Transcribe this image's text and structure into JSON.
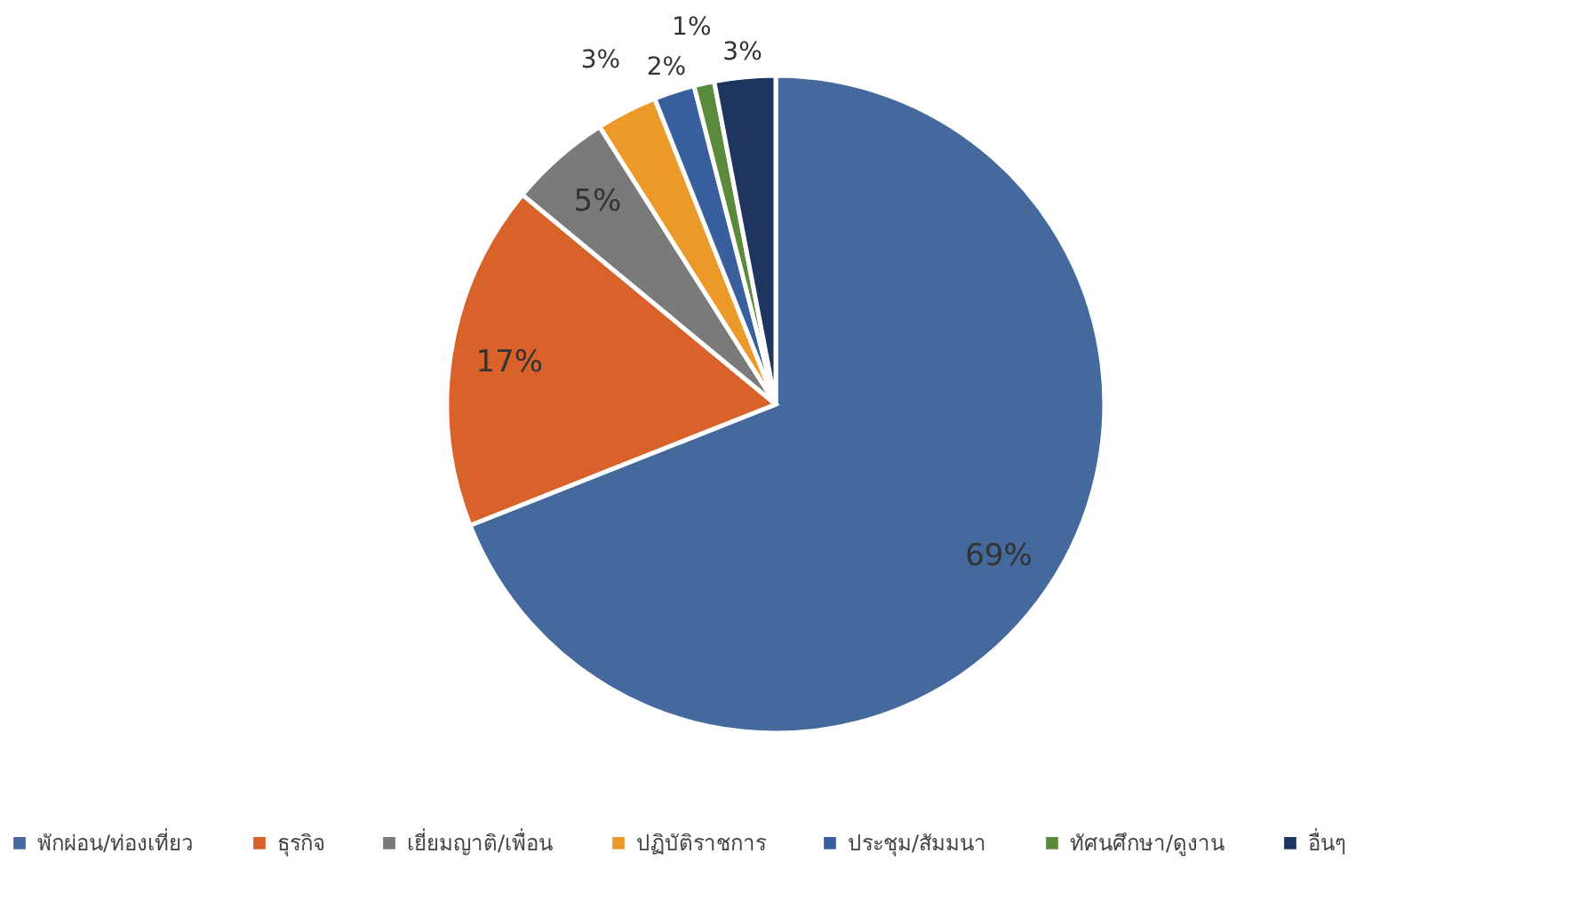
{
  "chart_data": {
    "type": "pie",
    "categories": [
      "พักผ่อน/ท่องเที่ยว",
      "ธุรกิจ",
      "เยี่ยมญาติ/เพื่อน",
      "ปฏิบัติราชการ",
      "ประชุม/สัมมนา",
      "ทัศนศึกษา/ดูงาน",
      "อื่นๆ"
    ],
    "values": [
      69,
      17,
      5,
      3,
      2,
      1,
      3
    ],
    "colors": [
      "#44699c",
      "#d9622b",
      "#7a7a7a",
      "#eb9a2a",
      "#3a5f9e",
      "#5b8a3c",
      "#1f3560"
    ],
    "value_labels": [
      "69%",
      "17%",
      "5%",
      "3%",
      "2%",
      "1%",
      "3%"
    ],
    "legend": "bottom"
  }
}
